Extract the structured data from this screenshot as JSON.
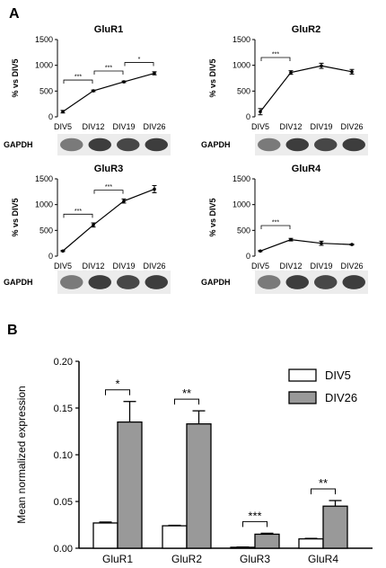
{
  "panel_labels": [
    "A",
    "B"
  ],
  "blot_label": "GAPDH",
  "colors": {
    "div5": "#ffffff",
    "div26": "#999999",
    "line": "#000000"
  },
  "chart_data": [
    {
      "type": "line",
      "title": "GluR1",
      "ylabel": "% vs DIV5",
      "categories": [
        "DIV5",
        "DIV12",
        "DIV19",
        "DIV26"
      ],
      "values": [
        100,
        505,
        680,
        845
      ],
      "errors": [
        25,
        15,
        15,
        30
      ],
      "ylim": [
        0,
        1500
      ],
      "yticks": [
        0,
        500,
        1000,
        1500
      ],
      "comparisons": [
        {
          "from": "DIV5",
          "to": "DIV12",
          "label": "***"
        },
        {
          "from": "DIV12",
          "to": "DIV19",
          "label": "***"
        },
        {
          "from": "DIV19",
          "to": "DIV26",
          "label": "*"
        }
      ]
    },
    {
      "type": "line",
      "title": "GluR2",
      "ylabel": "% vs DIV5",
      "categories": [
        "DIV5",
        "DIV12",
        "DIV19",
        "DIV26"
      ],
      "values": [
        100,
        860,
        990,
        875
      ],
      "errors": [
        60,
        35,
        50,
        45
      ],
      "ylim": [
        0,
        1500
      ],
      "yticks": [
        0,
        500,
        1000,
        1500
      ],
      "comparisons": [
        {
          "from": "DIV5",
          "to": "DIV12",
          "label": "***"
        }
      ]
    },
    {
      "type": "line",
      "title": "GluR3",
      "ylabel": "% vs DIV5",
      "categories": [
        "DIV5",
        "DIV12",
        "DIV19",
        "DIV26"
      ],
      "values": [
        100,
        605,
        1070,
        1300
      ],
      "errors": [
        10,
        40,
        40,
        70
      ],
      "ylim": [
        0,
        1500
      ],
      "yticks": [
        0,
        500,
        1000,
        1500
      ],
      "comparisons": [
        {
          "from": "DIV5",
          "to": "DIV12",
          "label": "***"
        },
        {
          "from": "DIV12",
          "to": "DIV19",
          "label": "***"
        }
      ]
    },
    {
      "type": "line",
      "title": "GluR4",
      "ylabel": "% vs DIV5",
      "categories": [
        "DIV5",
        "DIV12",
        "DIV19",
        "DIV26"
      ],
      "values": [
        100,
        320,
        250,
        225
      ],
      "errors": [
        10,
        25,
        40,
        10
      ],
      "ylim": [
        0,
        1500
      ],
      "yticks": [
        0,
        500,
        1000,
        1500
      ],
      "comparisons": [
        {
          "from": "DIV5",
          "to": "DIV12",
          "label": "***"
        }
      ]
    },
    {
      "type": "bar",
      "title": "",
      "ylabel": "Mean normalized expression",
      "xlabel": "",
      "categories": [
        "GluR1",
        "GluR2",
        "GluR3",
        "GluR4"
      ],
      "series": [
        {
          "name": "DIV5",
          "values": [
            0.027,
            0.024,
            0.001,
            0.01
          ],
          "errors": [
            0.001,
            0.0005,
            0.0003,
            0.0005
          ]
        },
        {
          "name": "DIV26",
          "values": [
            0.135,
            0.133,
            0.015,
            0.045
          ],
          "errors": [
            0.022,
            0.014,
            0.001,
            0.006
          ]
        }
      ],
      "ylim": [
        0,
        0.2
      ],
      "yticks": [
        "0.00",
        "0.05",
        "0.10",
        "0.15",
        "0.20"
      ],
      "significance": [
        "*",
        "**",
        "***",
        "**"
      ],
      "legend": "top-right",
      "grid": false
    }
  ]
}
